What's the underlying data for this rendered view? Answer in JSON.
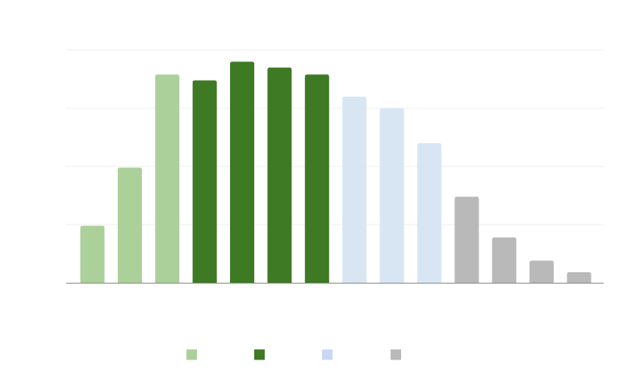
{
  "chart_data": {
    "type": "bar",
    "title": "",
    "xlabel": "",
    "ylabel": "",
    "ylim": [
      0,
      100
    ],
    "grid": true,
    "legend_position": "bottom",
    "categories": [
      "",
      "",
      "",
      "",
      "",
      "",
      "",
      "",
      "",
      "",
      "",
      "",
      "",
      ""
    ],
    "values": [
      24.5,
      49.5,
      89.5,
      87,
      95,
      92.5,
      89.5,
      80,
      75,
      60,
      37,
      19.5,
      9.5,
      4.5
    ],
    "series_index": [
      0,
      0,
      0,
      1,
      1,
      1,
      1,
      2,
      2,
      2,
      3,
      3,
      3,
      3
    ],
    "series": [
      {
        "color": "#abd09a"
      },
      {
        "color": "#3e7924"
      },
      {
        "color": "#d8e6f4"
      },
      {
        "color": "#b9b9b9"
      }
    ],
    "legend_colors": [
      "#abd09a",
      "#3e7924",
      "#c8d8f4",
      "#b9b9b9"
    ]
  }
}
